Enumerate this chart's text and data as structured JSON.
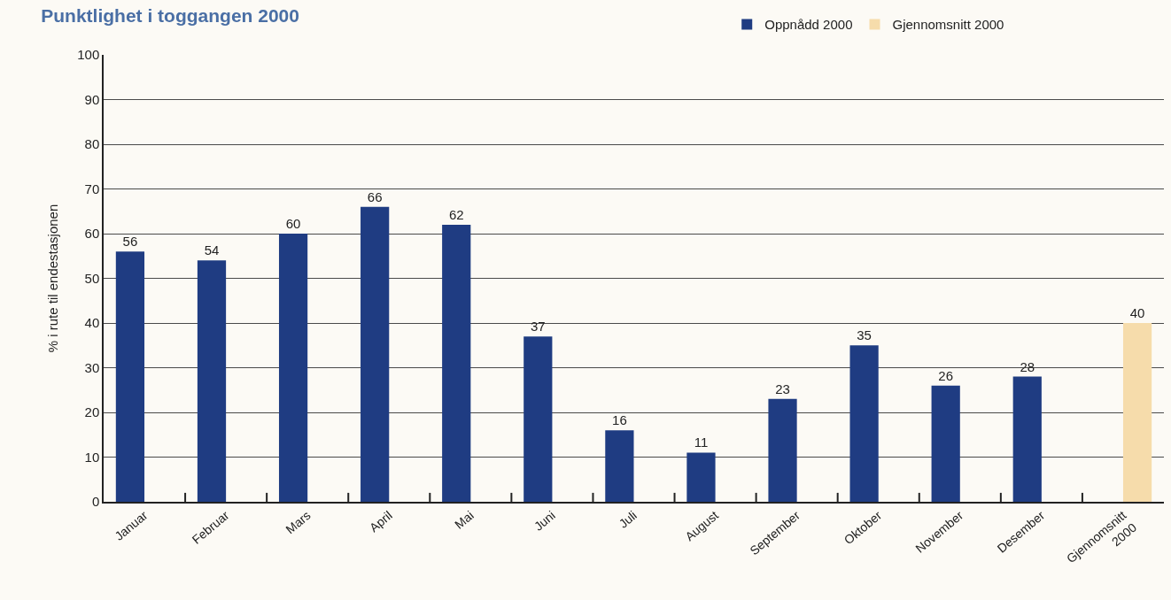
{
  "chart_data": {
    "type": "bar",
    "title": "Punktlighet i toggangen 2000",
    "ylabel": "% i rute til endestasjonen",
    "categories": [
      "Januar",
      "Februar",
      "Mars",
      "April",
      "Mai",
      "Juni",
      "Juli",
      "August",
      "September",
      "Oktober",
      "November",
      "Desember",
      "Gjennomsnitt 2000"
    ],
    "series": [
      {
        "name": "Oppnådd 2000",
        "color": "#1f3c82",
        "values": [
          56,
          54,
          60,
          66,
          62,
          37,
          16,
          11,
          23,
          35,
          26,
          28,
          null
        ]
      },
      {
        "name": "Gjennomsnitt 2000",
        "color": "#f6dcab",
        "values": [
          null,
          null,
          null,
          null,
          null,
          null,
          null,
          null,
          null,
          null,
          null,
          null,
          40
        ]
      }
    ],
    "ylim": [
      0,
      100
    ],
    "yticks": [
      0,
      10,
      20,
      30,
      40,
      50,
      60,
      70,
      80,
      90,
      100
    ],
    "grid": "y",
    "legend": "top right",
    "data_labels": true
  }
}
